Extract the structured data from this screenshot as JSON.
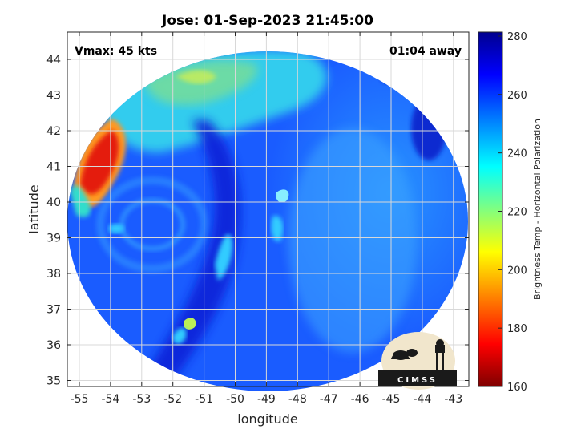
{
  "title": "Jose: 01-Sep-2023 21:45:00",
  "annotations": {
    "vmax": "Vmax: 45 kts",
    "time_away": "01:04 away"
  },
  "map": {
    "xlabel": "longitude",
    "ylabel": "latitude",
    "x_ticks": [
      "-55",
      "-54",
      "-53",
      "-52",
      "-51",
      "-50",
      "-49",
      "-48",
      "-47",
      "-46",
      "-45",
      "-44",
      "-43"
    ],
    "y_ticks": [
      "44",
      "43",
      "42",
      "41",
      "40",
      "39",
      "38",
      "37",
      "36",
      "35"
    ]
  },
  "colorbar": {
    "label": "Brightness Temp - Horizontal Polarization",
    "ticks": [
      "280",
      "260",
      "240",
      "220",
      "200",
      "180",
      "160"
    ],
    "colors": [
      "#7f0000",
      "#ff0000",
      "#ff8000",
      "#ffff00",
      "#80ff80",
      "#00ffff",
      "#0080ff",
      "#0000ff",
      "#00008f"
    ]
  },
  "logo": {
    "text": "CIMSS"
  }
}
